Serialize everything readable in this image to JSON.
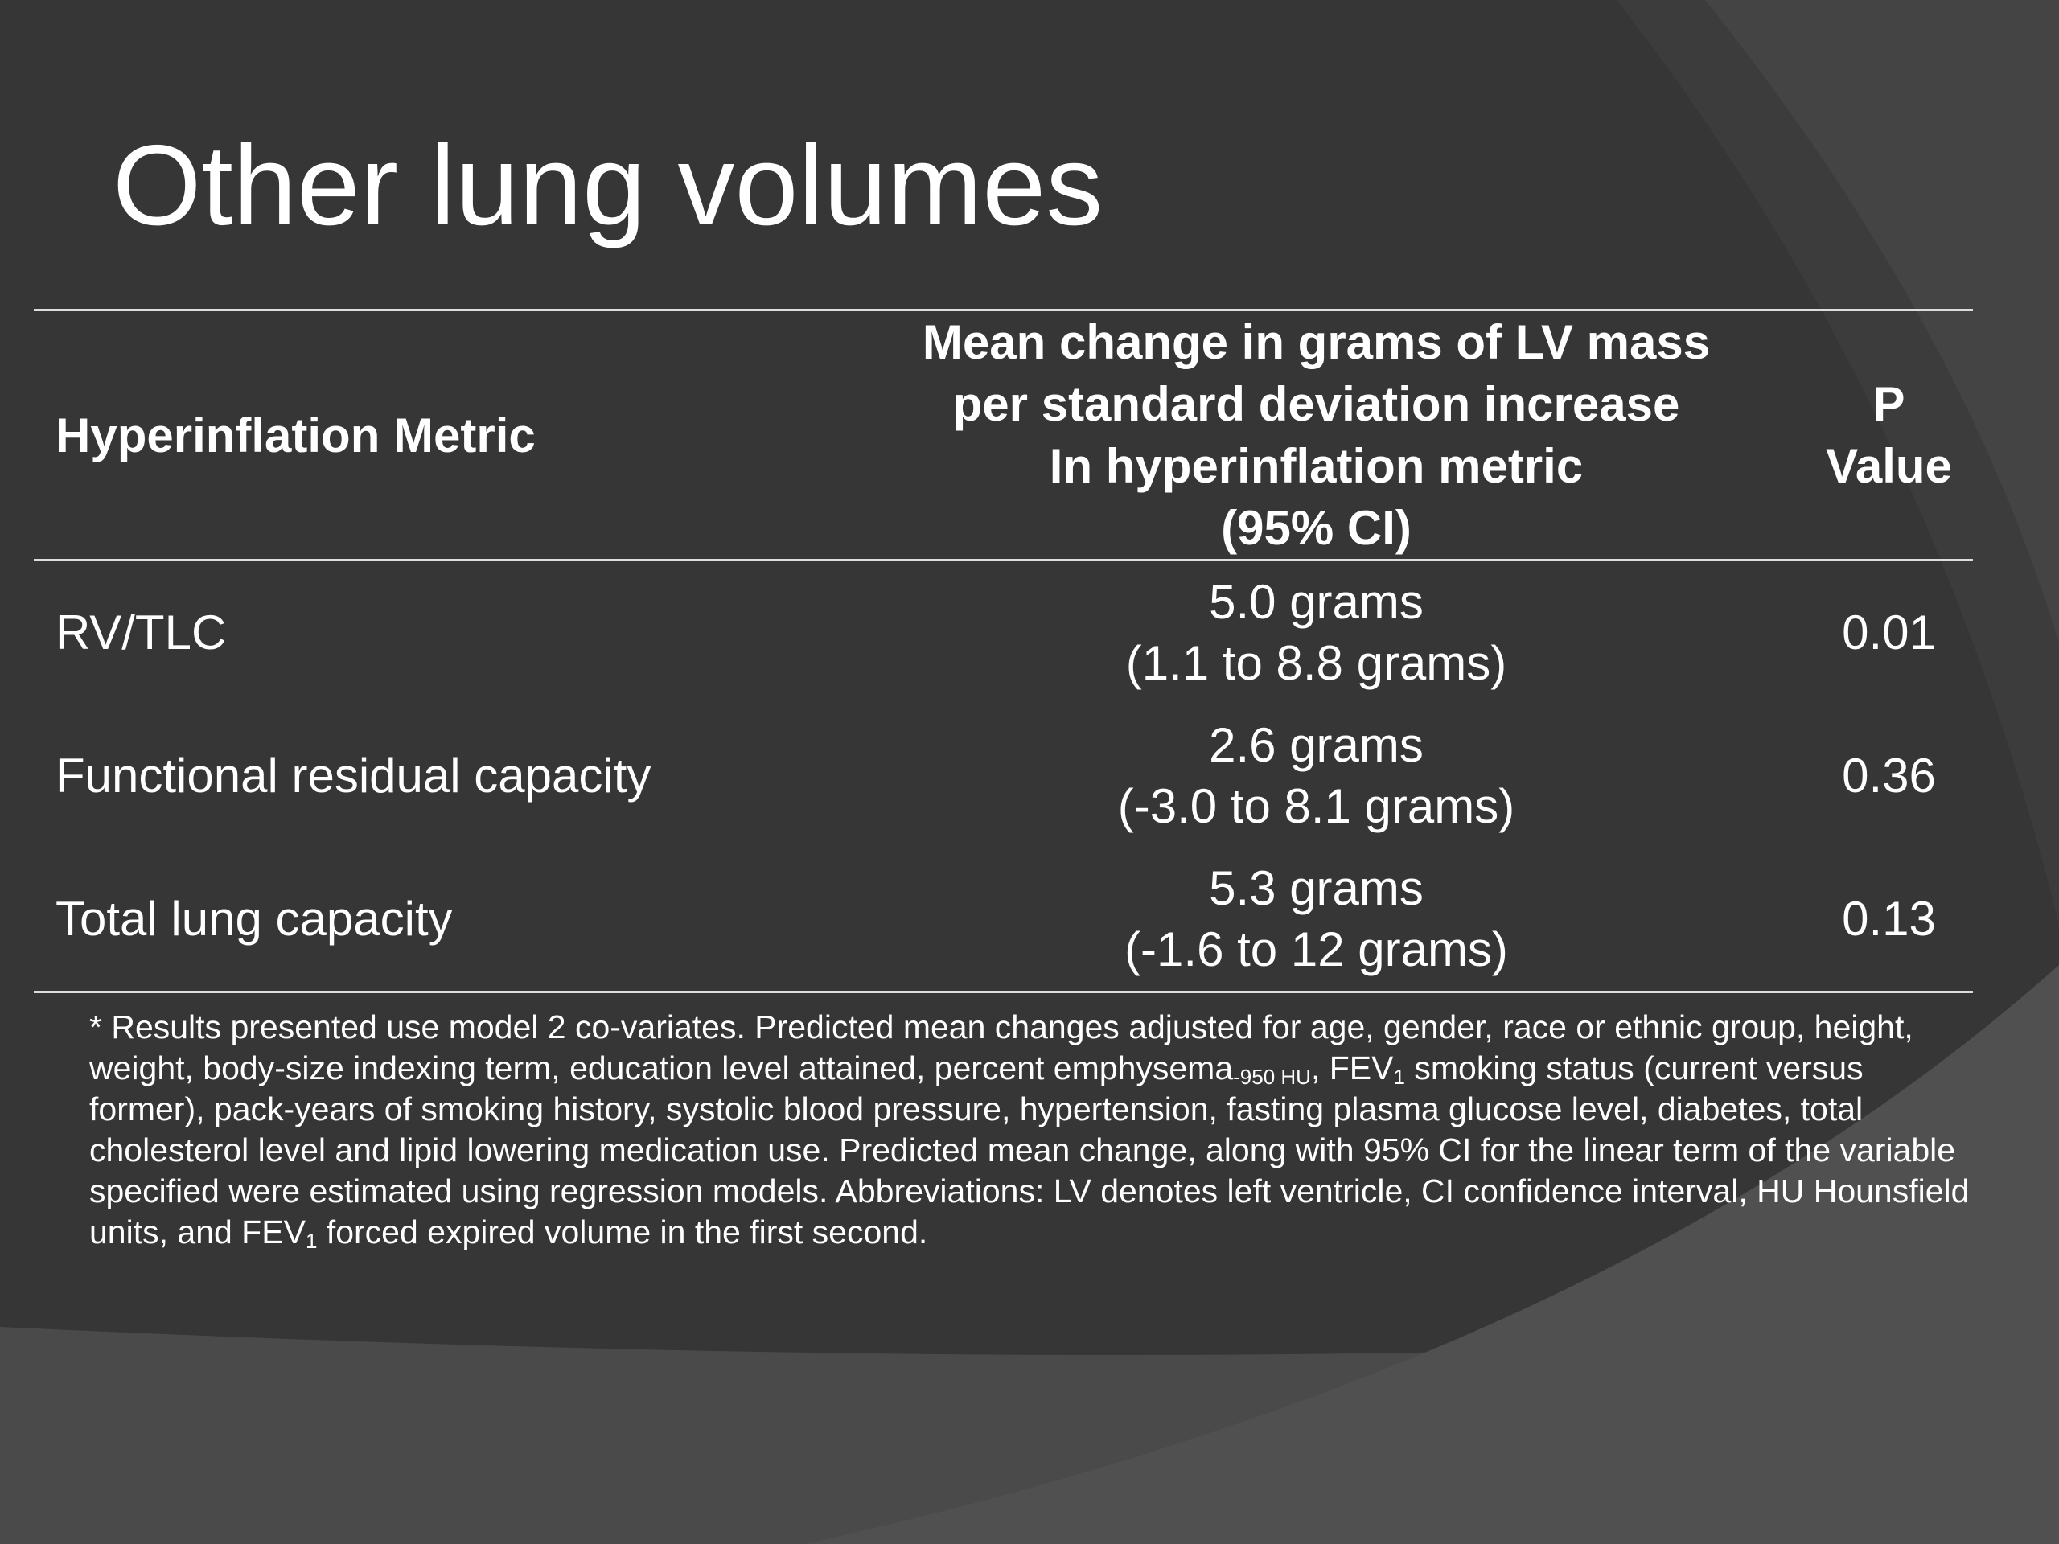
{
  "title": "Other lung volumes",
  "table": {
    "header": [
      "Hyperinflation Metric",
      [
        "Mean change in grams of LV mass",
        "per standard deviation increase",
        "In hyperinflation metric",
        "(95% CI)"
      ],
      [
        "P",
        "Value"
      ]
    ],
    "rows": [
      [
        "RV/TLC",
        [
          "5.0 grams",
          "(1.1 to 8.8 grams)"
        ],
        "0.01"
      ],
      [
        "Functional residual capacity",
        [
          "2.6 grams",
          "(-3.0 to 8.1 grams)"
        ],
        "0.36"
      ],
      [
        "Total lung capacity",
        [
          "5.3 grams",
          "(-1.6 to 12 grams)"
        ],
        "0.13"
      ]
    ]
  },
  "footnote": [
    "* Results presented use model 2 co-variates. Predicted mean changes adjusted for age, gender, race or ethnic group, height, weight, body-size indexing term, education level attained, percent emphysema",
    "-950 HU",
    ", FEV",
    "1",
    " smoking status (current versus former), pack-years of smoking history, systolic blood pressure, hypertension, fasting plasma glucose level, diabetes, total cholesterol level and lipid lowering medication use. Predicted mean change, along with 95% CI for the linear term of the variable specified were estimated using regression models. Abbreviations: LV denotes left ventricle, CI confidence interval, HU Hounsfield units, and FEV",
    "1",
    " forced expired volume in the first second."
  ]
}
